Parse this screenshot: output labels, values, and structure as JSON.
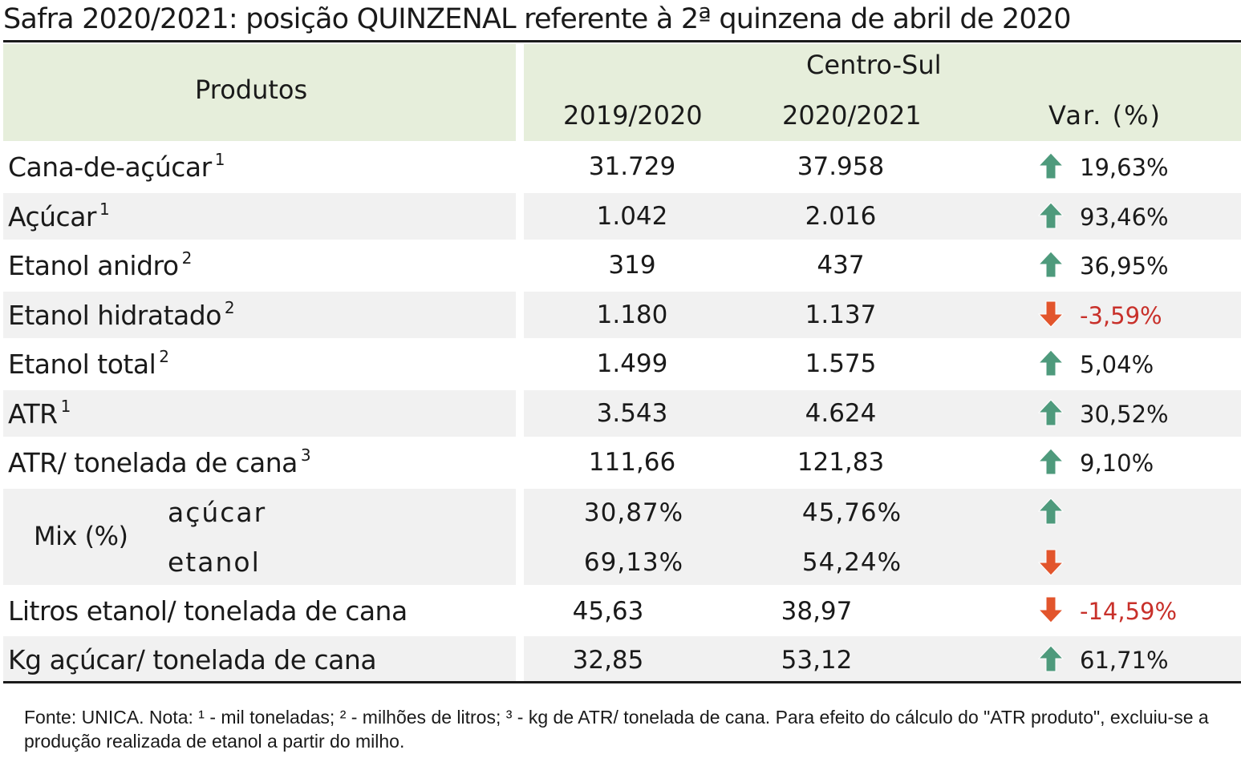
{
  "title": "Safra 2020/2021: posição QUINZENAL referente à 2ª quinzena de abril de 2020",
  "header": {
    "produtos": "Produtos",
    "region": "Centro-Sul",
    "col_2019": "2019/2020",
    "col_2020": "2020/2021",
    "col_var": "Var. (%)"
  },
  "rows": [
    {
      "label": "Cana-de-açúcar",
      "sup": "1",
      "v1": "31.729",
      "v2": "37.958",
      "var": "19,63%",
      "dir": "up"
    },
    {
      "label": "Açúcar",
      "sup": "1",
      "v1": "1.042",
      "v2": "2.016",
      "var": "93,46%",
      "dir": "up"
    },
    {
      "label": "Etanol anidro",
      "sup": "2",
      "v1": "319",
      "v2": "437",
      "var": "36,95%",
      "dir": "up"
    },
    {
      "label": "Etanol hidratado",
      "sup": "2",
      "v1": "1.180",
      "v2": "1.137",
      "var": "-3,59%",
      "dir": "down"
    },
    {
      "label": "Etanol total",
      "sup": "2",
      "v1": "1.499",
      "v2": "1.575",
      "var": "5,04%",
      "dir": "up"
    },
    {
      "label": "ATR",
      "sup": "1",
      "v1": "3.543",
      "v2": "4.624",
      "var": "30,52%",
      "dir": "up"
    },
    {
      "label": "ATR/ tonelada de cana",
      "sup": "3",
      "v1": "111,66",
      "v2": "121,83",
      "var": "9,10%",
      "dir": "up"
    }
  ],
  "mix": {
    "label": "Mix (%)",
    "acucar": {
      "label": "açúcar",
      "v1": "30,87%",
      "v2": "45,76%",
      "dir": "up"
    },
    "etanol": {
      "label": "etanol",
      "v1": "69,13%",
      "v2": "54,24%",
      "dir": "down"
    }
  },
  "tail_rows": [
    {
      "label": "Litros etanol/ tonelada de cana",
      "v1": "45,63",
      "v2": "38,97",
      "var": "-14,59%",
      "dir": "down"
    },
    {
      "label": "Kg açúcar/ tonelada de cana",
      "v1": "32,85",
      "v2": "53,12",
      "var": "61,71%",
      "dir": "up"
    }
  ],
  "footnote": "Fonte: UNICA. Nota: ¹ - mil toneladas; ² - milhões de litros; ³ - kg de ATR/ tonelada de cana. Para efeito do cálculo do \"ATR produto\", excluiu-se a produção realizada de etanol a partir do milho.",
  "colors": {
    "header_bg": "#e6eedb",
    "stripe_bg": "#f1f1f1",
    "up_arrow": "#4e9a7c",
    "down_arrow": "#e2552c",
    "negative_text": "#c8302a"
  }
}
